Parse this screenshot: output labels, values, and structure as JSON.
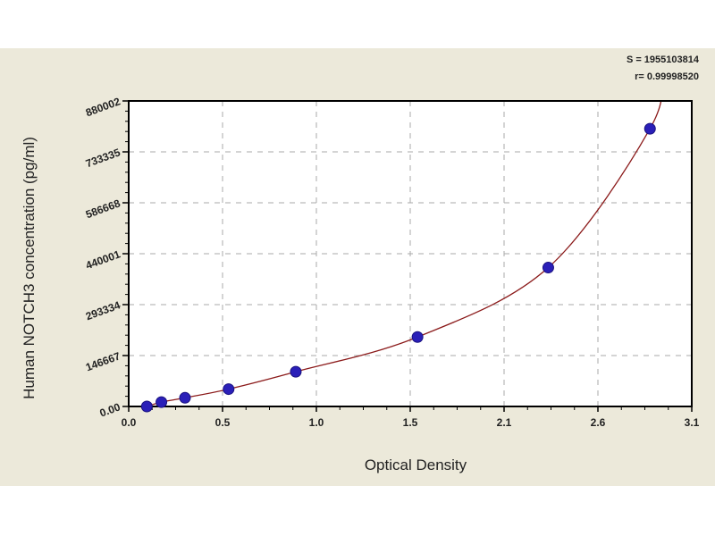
{
  "chart_data": {
    "type": "scatter",
    "title": "",
    "xlabel": "Optical Density",
    "ylabel": "Human  NOTCH3 concentration (pg/ml)",
    "xlim": [
      0.0,
      3.1
    ],
    "ylim": [
      0,
      880002
    ],
    "x_ticks": [
      "0.0",
      "0.5",
      "1.0",
      "1.5",
      "2.1",
      "2.6",
      "3.1"
    ],
    "y_ticks": [
      "0.00",
      "146667",
      "293334",
      "440001",
      "586668",
      "733335",
      "880002"
    ],
    "grid": "dashed",
    "fit_curve": true,
    "annotations": [
      "S = 1955103814",
      "r= 0.99998520"
    ],
    "points": [
      {
        "x": 0.1,
        "y": 0
      },
      {
        "x": 0.18,
        "y": 12500
      },
      {
        "x": 0.31,
        "y": 25000
      },
      {
        "x": 0.55,
        "y": 50000
      },
      {
        "x": 0.92,
        "y": 100000
      },
      {
        "x": 1.59,
        "y": 200000
      },
      {
        "x": 2.31,
        "y": 400000
      },
      {
        "x": 2.87,
        "y": 800000
      }
    ],
    "colors": {
      "background": "#ece9da",
      "plot": "#ffffff",
      "points": "#2a1fb8",
      "curve": "#8b1a1a",
      "grid": "#aaaaaa"
    }
  }
}
